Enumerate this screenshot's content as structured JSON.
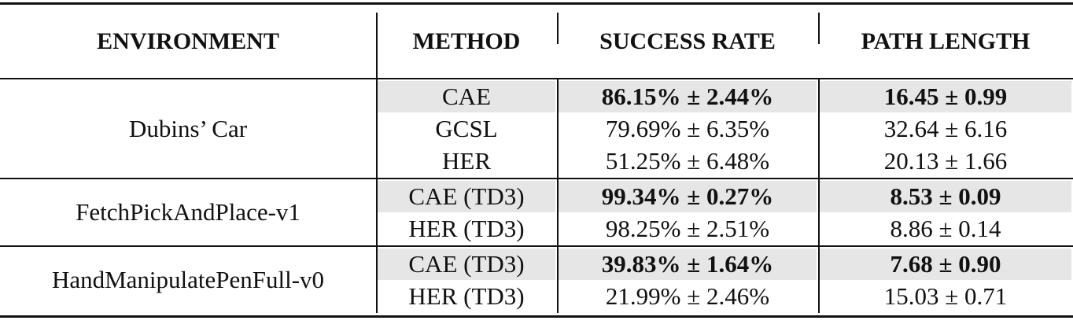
{
  "table": {
    "header": [
      "ENVIRONMENT",
      "METHOD",
      "SUCCESS RATE",
      "PATH LENGTH"
    ],
    "groups": [
      {
        "environment": "Dubins’ Car",
        "rows": [
          [
            "CAE",
            "86.15% ± 2.44%",
            "16.45 ± 0.99"
          ],
          [
            "GCSL",
            "79.69% ± 6.35%",
            "32.64 ± 6.16"
          ],
          [
            "HER",
            "51.25% ± 6.48%",
            "20.13 ± 1.66"
          ]
        ]
      },
      {
        "environment": "FetchPickAndPlace-v1",
        "rows": [
          [
            "CAE (TD3)",
            "99.34% ± 0.27%",
            "8.53 ± 0.09"
          ],
          [
            "HER (TD3)",
            "98.25% ± 2.51%",
            "8.86 ± 0.14"
          ]
        ]
      },
      {
        "environment": "HandManipulatePenFull-v0",
        "rows": [
          [
            "CAE (TD3)",
            "39.83% ± 1.64%",
            "7.68 ± 0.90"
          ],
          [
            "HER (TD3)",
            "21.99% ± 2.46%",
            "15.03 ± 0.71"
          ]
        ]
      }
    ]
  }
}
